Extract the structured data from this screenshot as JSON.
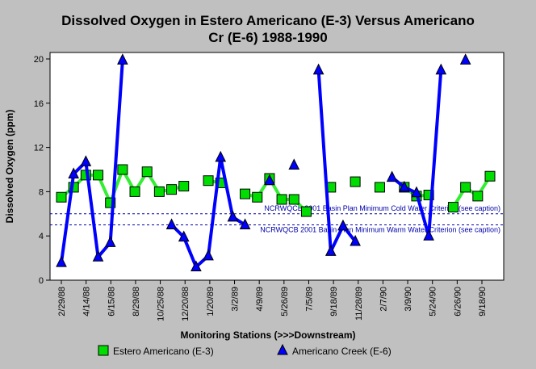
{
  "chart_data": {
    "type": "line",
    "title_lines": [
      "Dissolved Oxygen in Estero Americano (E-3) Versus Americano",
      "Cr (E-6) 1988-1990"
    ],
    "xlabel": "Monitoring Stations (>>>Downstream)",
    "ylabel": "Dissolved Oxygen (ppm)",
    "ylim": [
      0,
      20
    ],
    "yticks": [
      0,
      4,
      8,
      12,
      16,
      20
    ],
    "xlim": [
      0,
      36
    ],
    "x_tick_labels": [
      "2/29/88",
      "4/14/88",
      "6/15/88",
      "8/29/88",
      "10/25/88",
      "12/20/88",
      "1/20/89",
      "3/2/89",
      "4/9/89",
      "5/26/89",
      "7/5/89",
      "9/18/89",
      "11/28/89",
      "2/7/90",
      "3/9/90",
      "5/24/90",
      "6/26/90",
      "9/18/90"
    ],
    "grid": false,
    "legend_position": "bottom",
    "reference_lines": [
      {
        "y": 6,
        "label": "NCRWQCB 2001 Basin Plan Minimum Cold Water Criterion (see caption)",
        "color": "#0000aa"
      },
      {
        "y": 5,
        "label": "NCRWQCB 2001 Basin Plan Minimum Warm Water Criterion (see caption)",
        "color": "#0000aa"
      }
    ],
    "series": [
      {
        "name": "Estero Americano (E-3)",
        "color": "#00dd00",
        "line_color": "#33ee33",
        "marker": "square",
        "segments": [
          [
            [
              0,
              7.5
            ],
            [
              1,
              8.4
            ],
            [
              2,
              9.5
            ],
            [
              3,
              9.5
            ],
            [
              4,
              7.0
            ],
            [
              5,
              10.0
            ],
            [
              6,
              8.0
            ],
            [
              7,
              9.8
            ],
            [
              8,
              8.0
            ],
            [
              9,
              8.2
            ],
            [
              10,
              8.5
            ]
          ],
          [
            [
              12,
              9.0
            ],
            [
              13,
              8.8
            ]
          ],
          [
            [
              15,
              7.8
            ],
            [
              16,
              7.5
            ],
            [
              17,
              9.2
            ],
            [
              18,
              7.3
            ],
            [
              19,
              7.3
            ],
            [
              20,
              6.2
            ]
          ],
          [
            [
              22,
              8.4
            ]
          ],
          [
            [
              24,
              8.9
            ]
          ],
          [
            [
              26,
              8.4
            ]
          ],
          [
            [
              28,
              8.4
            ],
            [
              29,
              7.6
            ],
            [
              30,
              7.7
            ]
          ],
          [
            [
              32,
              6.6
            ],
            [
              33,
              8.4
            ],
            [
              34,
              7.6
            ],
            [
              35,
              9.4
            ]
          ]
        ]
      },
      {
        "name": "Americano Creek (E-6)",
        "color": "#0000ff",
        "line_color": "#0000ff",
        "marker": "triangle",
        "segments": [
          [
            [
              0,
              1.6
            ],
            [
              1,
              9.6
            ],
            [
              2,
              10.7
            ],
            [
              3,
              2.1
            ],
            [
              4,
              3.4
            ],
            [
              5,
              19.9
            ]
          ],
          [
            [
              9,
              5.0
            ],
            [
              10,
              3.9
            ],
            [
              11,
              1.2
            ],
            [
              12,
              2.2
            ],
            [
              13,
              11.1
            ],
            [
              14,
              5.7
            ],
            [
              15,
              5.0
            ]
          ],
          [
            [
              17,
              9.0
            ]
          ],
          [
            [
              19,
              10.4
            ]
          ],
          [
            [
              21,
              19.0
            ],
            [
              22,
              2.6
            ],
            [
              23,
              4.9
            ],
            [
              24,
              3.5
            ]
          ],
          [
            [
              27,
              9.3
            ],
            [
              28,
              8.4
            ],
            [
              29,
              7.9
            ],
            [
              30,
              4.0
            ],
            [
              31,
              19.0
            ]
          ],
          [
            [
              33,
              19.9
            ]
          ]
        ]
      }
    ]
  }
}
